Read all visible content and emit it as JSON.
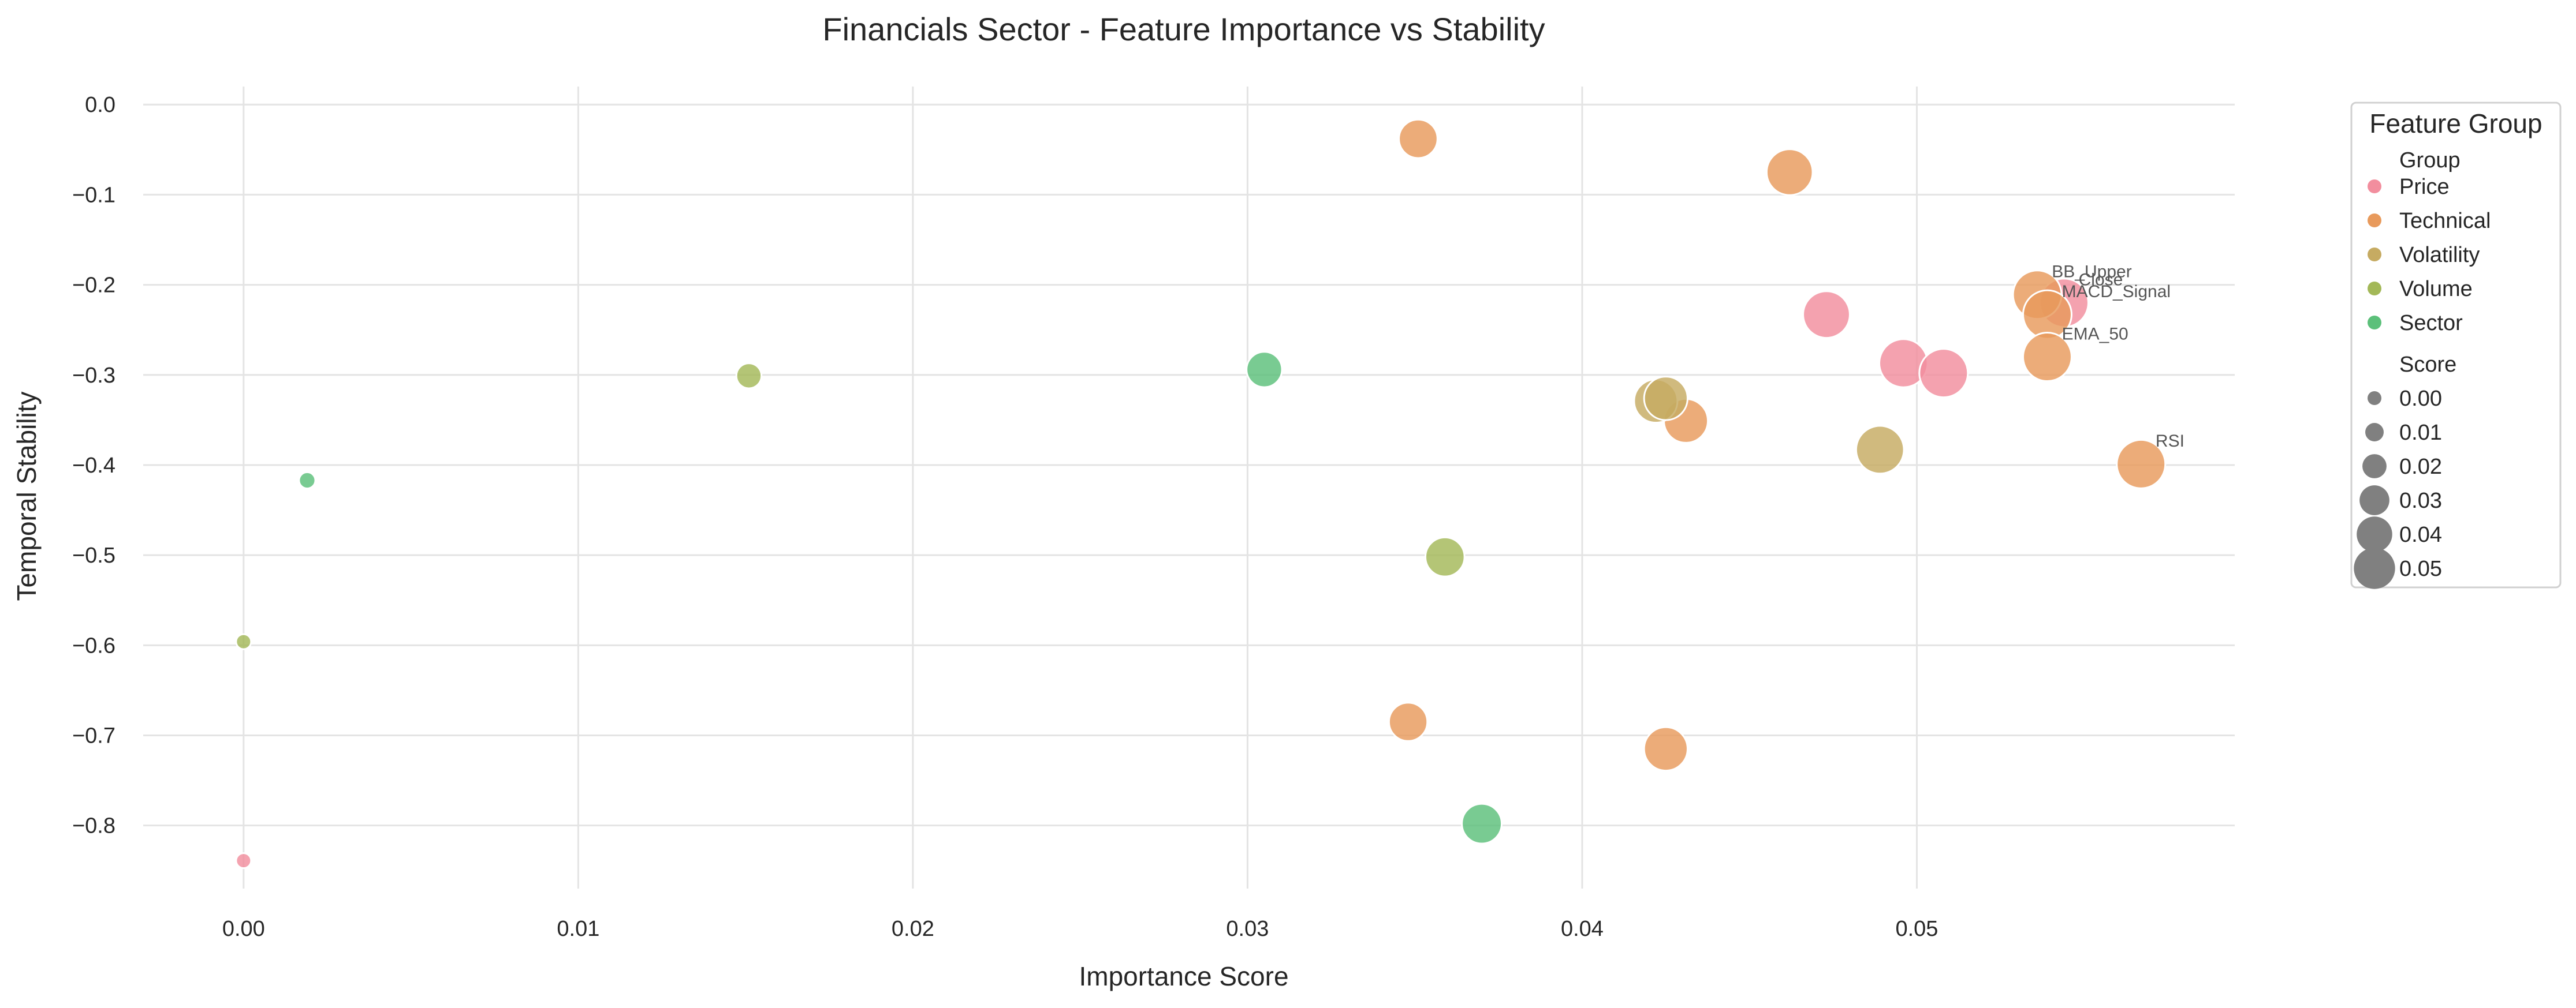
{
  "chart_data": {
    "type": "scatter",
    "title": "Financials Sector - Feature Importance vs Stability",
    "xlabel": "Importance Score",
    "ylabel": "Temporal Stability",
    "xlim": [
      -0.003,
      0.0595
    ],
    "ylim": [
      -0.87,
      0.02
    ],
    "xticks": [
      0.0,
      0.01,
      0.02,
      0.03,
      0.04,
      0.05
    ],
    "xtick_labels": [
      "0.00",
      "0.01",
      "0.02",
      "0.03",
      "0.04",
      "0.05"
    ],
    "yticks": [
      0.0,
      -0.1,
      -0.2,
      -0.3,
      -0.4,
      -0.5,
      -0.6,
      -0.7,
      -0.8
    ],
    "ytick_labels": [
      "0.0",
      "−0.1",
      "−0.2",
      "−0.3",
      "−0.4",
      "−0.5",
      "−0.6",
      "−0.7",
      "−0.8"
    ],
    "grid": true,
    "group_colors": {
      "Price": "#f28e9e",
      "Technical": "#e89a5c",
      "Volatility": "#c6ab62",
      "Volume": "#a3b858",
      "Sector": "#5cc07a"
    },
    "points": [
      {
        "x": 0.0351,
        "y": -0.038,
        "group": "Technical",
        "label": ""
      },
      {
        "x": 0.0462,
        "y": -0.075,
        "group": "Technical",
        "label": ""
      },
      {
        "x": 0.0473,
        "y": -0.233,
        "group": "Price",
        "label": ""
      },
      {
        "x": 0.0496,
        "y": -0.287,
        "group": "Price",
        "label": ""
      },
      {
        "x": 0.0508,
        "y": -0.298,
        "group": "Price",
        "label": ""
      },
      {
        "x": 0.0544,
        "y": -0.22,
        "group": "Price",
        "label": "Close"
      },
      {
        "x": 0.0536,
        "y": -0.211,
        "group": "Technical",
        "label": "BB_Upper"
      },
      {
        "x": 0.0539,
        "y": -0.233,
        "group": "Technical",
        "label": "MACD_Signal"
      },
      {
        "x": 0.0539,
        "y": -0.28,
        "group": "Technical",
        "label": "EMA_50"
      },
      {
        "x": 0.0567,
        "y": -0.399,
        "group": "Technical",
        "label": "RSI"
      },
      {
        "x": 0.0431,
        "y": -0.351,
        "group": "Technical",
        "label": ""
      },
      {
        "x": 0.0422,
        "y": -0.329,
        "group": "Volatility",
        "label": ""
      },
      {
        "x": 0.0425,
        "y": -0.326,
        "group": "Volatility",
        "label": ""
      },
      {
        "x": 0.0489,
        "y": -0.383,
        "group": "Volatility",
        "label": ""
      },
      {
        "x": 0.0305,
        "y": -0.294,
        "group": "Sector",
        "label": ""
      },
      {
        "x": 0.0151,
        "y": -0.301,
        "group": "Volume",
        "label": ""
      },
      {
        "x": 0.0019,
        "y": -0.417,
        "group": "Sector",
        "label": ""
      },
      {
        "x": 0.0359,
        "y": -0.502,
        "group": "Volume",
        "label": ""
      },
      {
        "x": 0.0,
        "y": -0.596,
        "group": "Volume",
        "label": ""
      },
      {
        "x": 0.0348,
        "y": -0.685,
        "group": "Technical",
        "label": ""
      },
      {
        "x": 0.0425,
        "y": -0.715,
        "group": "Technical",
        "label": ""
      },
      {
        "x": 0.037,
        "y": -0.798,
        "group": "Sector",
        "label": ""
      },
      {
        "x": 0.0,
        "y": -0.839,
        "group": "Price",
        "label": ""
      }
    ],
    "legend": {
      "title": "Feature Group",
      "placement": "upper right, outside plot",
      "hue_header": "Group",
      "groups": [
        "Price",
        "Technical",
        "Volatility",
        "Volume",
        "Sector"
      ],
      "size_header": "Score",
      "sizes": [
        0.0,
        0.01,
        0.02,
        0.03,
        0.04,
        0.05
      ],
      "size_labels": [
        "0.00",
        "0.01",
        "0.02",
        "0.03",
        "0.04",
        "0.05"
      ],
      "size_color": "#808080"
    }
  }
}
